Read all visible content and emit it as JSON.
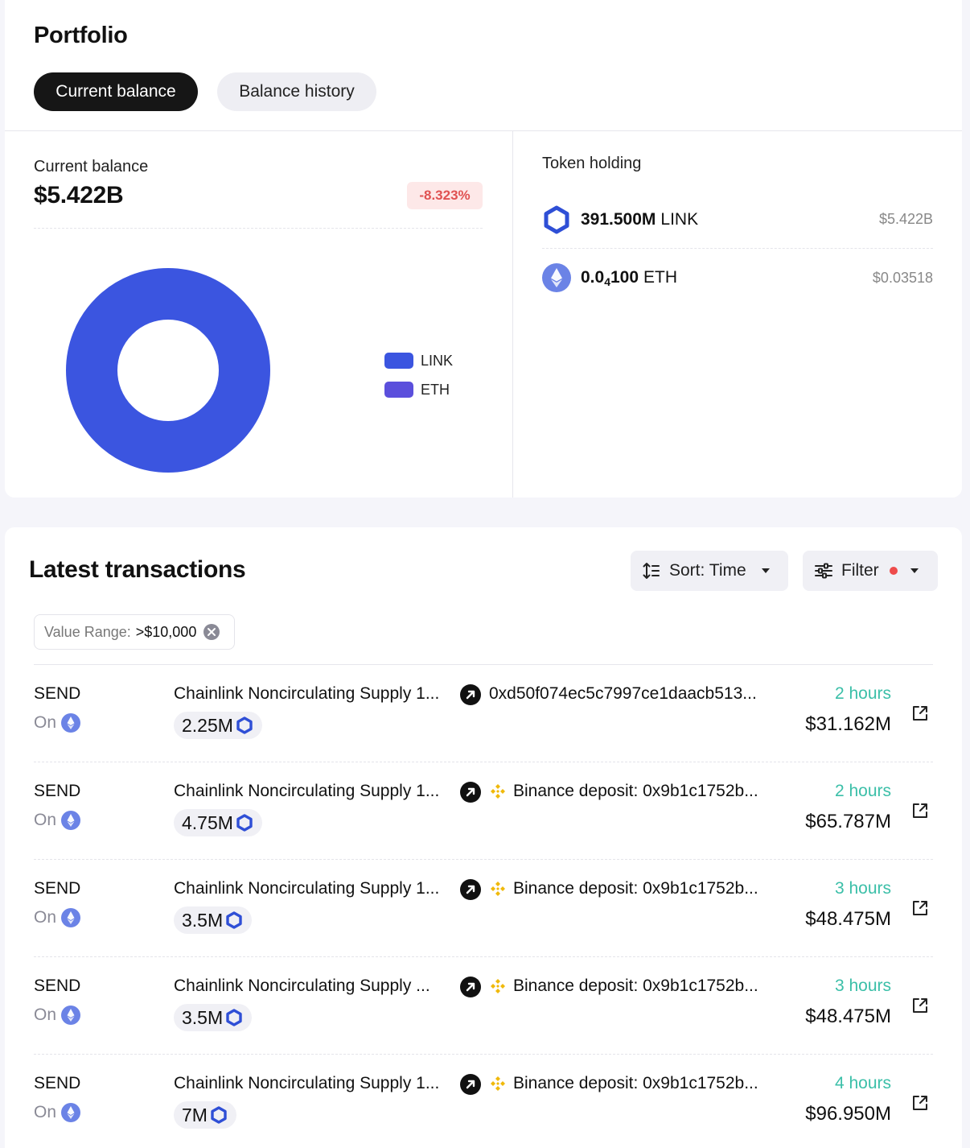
{
  "portfolio": {
    "title": "Portfolio",
    "tabs": [
      {
        "label": "Current balance",
        "active": true
      },
      {
        "label": "Balance history",
        "active": false
      }
    ],
    "balance": {
      "label": "Current balance",
      "value": "$5.422B",
      "change": "-8.323%"
    },
    "legend": [
      {
        "label": "LINK",
        "color": "#3b55e0"
      },
      {
        "label": "ETH",
        "color": "#5b4fdc"
      }
    ],
    "token_holding": {
      "title": "Token holding",
      "tokens": [
        {
          "amount": "391.500M",
          "amount_main": "391.500M",
          "amount_sub": "",
          "amount_tail": "",
          "symbol": "LINK",
          "usd": "$5.422B",
          "icon": "chainlink-icon"
        },
        {
          "amount": "0.0₄100",
          "amount_main": "0.0",
          "amount_sub": "4",
          "amount_tail": "100",
          "symbol": "ETH",
          "usd": "$0.03518",
          "icon": "ethereum-icon"
        }
      ]
    }
  },
  "chart_data": {
    "type": "pie",
    "categories": [
      "LINK",
      "ETH"
    ],
    "values": [
      5422000000,
      0.03518
    ],
    "colors": [
      "#3b55e0",
      "#5b4fdc"
    ],
    "legend_position": "right"
  },
  "transactions": {
    "title": "Latest transactions",
    "sort_label": "Sort: Time",
    "filter_label": "Filter",
    "filter_active": true,
    "chip": {
      "label": "Value Range:",
      "value": ">$10,000"
    },
    "rows": [
      {
        "type": "SEND",
        "on": "On",
        "from": "Chainlink Noncirculating Supply 1...",
        "to": "0xd50f074ec5c7997ce1daacb513...",
        "to_binance": false,
        "amount": "2.25M",
        "time": "2 hours",
        "usd": "$31.162M"
      },
      {
        "type": "SEND",
        "on": "On",
        "from": "Chainlink Noncirculating Supply 1...",
        "to": "Binance deposit: 0x9b1c1752b...",
        "to_binance": true,
        "amount": "4.75M",
        "time": "2 hours",
        "usd": "$65.787M"
      },
      {
        "type": "SEND",
        "on": "On",
        "from": "Chainlink Noncirculating Supply 1...",
        "to": "Binance deposit: 0x9b1c1752b...",
        "to_binance": true,
        "amount": "3.5M",
        "time": "3 hours",
        "usd": "$48.475M"
      },
      {
        "type": "SEND",
        "on": "On",
        "from": "Chainlink Noncirculating Supply ...",
        "to": "Binance deposit: 0x9b1c1752b...",
        "to_binance": true,
        "amount": "3.5M",
        "time": "3 hours",
        "usd": "$48.475M"
      },
      {
        "type": "SEND",
        "on": "On",
        "from": "Chainlink Noncirculating Supply 1...",
        "to": "Binance deposit: 0x9b1c1752b...",
        "to_binance": true,
        "amount": "7M",
        "time": "4 hours",
        "usd": "$96.950M"
      }
    ]
  }
}
